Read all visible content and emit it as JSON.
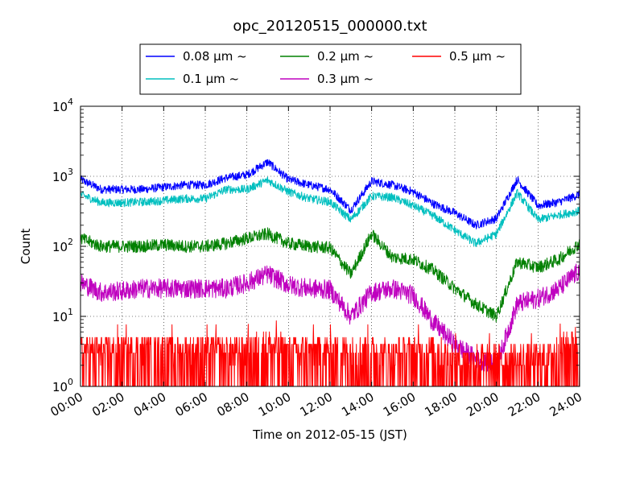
{
  "chart_data": {
    "type": "line",
    "title": "opc_20120515_000000.txt",
    "xlabel": "Time on 2012-05-15 (JST)",
    "ylabel": "Count",
    "xlim": [
      "00:00",
      "24:00"
    ],
    "ylim": [
      1,
      10000
    ],
    "yscale": "log",
    "grid": true,
    "legend_position": "top-center",
    "x_ticks": [
      "00:00",
      "02:00",
      "04:00",
      "06:00",
      "08:00",
      "10:00",
      "12:00",
      "14:00",
      "16:00",
      "18:00",
      "20:00",
      "22:00",
      "24:00"
    ],
    "y_ticks": [
      {
        "base": "10",
        "exp": "0"
      },
      {
        "base": "10",
        "exp": "1"
      },
      {
        "base": "10",
        "exp": "2"
      },
      {
        "base": "10",
        "exp": "3"
      },
      {
        "base": "10",
        "exp": "4"
      }
    ],
    "x": [
      "00:00",
      "01:00",
      "02:00",
      "03:00",
      "04:00",
      "05:00",
      "06:00",
      "07:00",
      "08:00",
      "09:00",
      "10:00",
      "11:00",
      "12:00",
      "13:00",
      "14:00",
      "15:00",
      "16:00",
      "17:00",
      "18:00",
      "19:00",
      "20:00",
      "21:00",
      "22:00",
      "23:00",
      "24:00"
    ],
    "series": [
      {
        "name": "0.08 μm ~",
        "color": "#0000ff",
        "values": [
          900,
          650,
          650,
          650,
          700,
          750,
          750,
          950,
          1050,
          1600,
          900,
          750,
          650,
          330,
          850,
          750,
          600,
          400,
          300,
          200,
          250,
          900,
          380,
          430,
          550
        ]
      },
      {
        "name": "0.1 μm ~",
        "color": "#00bfbf",
        "values": [
          550,
          420,
          420,
          430,
          450,
          480,
          480,
          650,
          650,
          880,
          600,
          480,
          430,
          240,
          520,
          500,
          380,
          270,
          170,
          110,
          150,
          580,
          240,
          280,
          320
        ]
      },
      {
        "name": "0.2 μm ~",
        "color": "#008000",
        "values": [
          130,
          100,
          100,
          100,
          105,
          100,
          100,
          110,
          130,
          150,
          110,
          100,
          95,
          40,
          150,
          70,
          65,
          45,
          25,
          15,
          10,
          60,
          50,
          65,
          110
        ]
      },
      {
        "name": "0.3 μm ~",
        "color": "#bf00bf",
        "values": [
          30,
          22,
          23,
          25,
          25,
          25,
          25,
          25,
          30,
          40,
          28,
          25,
          24,
          10,
          22,
          25,
          20,
          8,
          4,
          2.5,
          2,
          15,
          18,
          25,
          45
        ]
      },
      {
        "name": "0.5 μm ~",
        "color": "#ff0000",
        "values": [
          2,
          2,
          2,
          2,
          2,
          2,
          2,
          2,
          2,
          2.5,
          2,
          2,
          2,
          2,
          2,
          1.8,
          2,
          2,
          1.5,
          1.5,
          1.5,
          1.5,
          1.5,
          2,
          3
        ]
      }
    ]
  }
}
